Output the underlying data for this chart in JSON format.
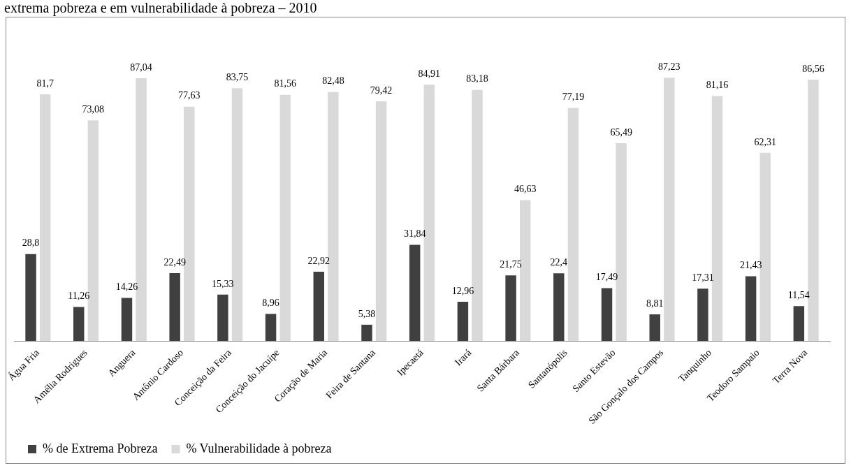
{
  "chart_data": {
    "type": "bar",
    "title": "extrema pobreza e em vulnerabilidade à pobreza – 2010",
    "categories": [
      "Água Fria",
      "Amélia Rodrigues",
      "Anguera",
      "Antônio Cardoso",
      "Conceição da Feira",
      "Conceição do Jacuípe",
      "Coração de Maria",
      "Feira de Santana",
      "Ipecaetá",
      "Irará",
      "Santa Bárbara",
      "Santanópolis",
      "Santo Estevão",
      "São Gonçalo dos Campos",
      "Tanquinho",
      "Teodoro Sampaio",
      "Terra Nova"
    ],
    "series": [
      {
        "name": "% de Extrema Pobreza",
        "color": "#404040",
        "values": [
          28.8,
          11.26,
          14.26,
          22.49,
          15.33,
          8.96,
          22.92,
          5.38,
          31.84,
          12.96,
          21.75,
          22.4,
          17.49,
          8.81,
          17.31,
          21.43,
          11.54
        ],
        "value_labels": [
          "28,8",
          "11,26",
          "14,26",
          "22,49",
          "15,33",
          "8,96",
          "22,92",
          "5,38",
          "31,84",
          "12,96",
          "21,75",
          "22,4",
          "17,49",
          "8,81",
          "17,31",
          "21,43",
          "11,54"
        ]
      },
      {
        "name": "% Vulnerabilidade à pobreza",
        "color": "#d9d9d9",
        "values": [
          81.7,
          73.08,
          87.04,
          77.63,
          83.75,
          81.56,
          82.48,
          79.42,
          84.91,
          83.18,
          46.63,
          77.19,
          65.49,
          87.23,
          81.16,
          62.31,
          86.56
        ],
        "value_labels": [
          "81,7",
          "73,08",
          "87,04",
          "77,63",
          "83,75",
          "81,56",
          "82,48",
          "79,42",
          "84,91",
          "83,18",
          "46,63",
          "77,19",
          "65,49",
          "87,23",
          "81,16",
          "62,31",
          "86,56"
        ]
      }
    ],
    "legend": "bottom",
    "grid": false
  }
}
